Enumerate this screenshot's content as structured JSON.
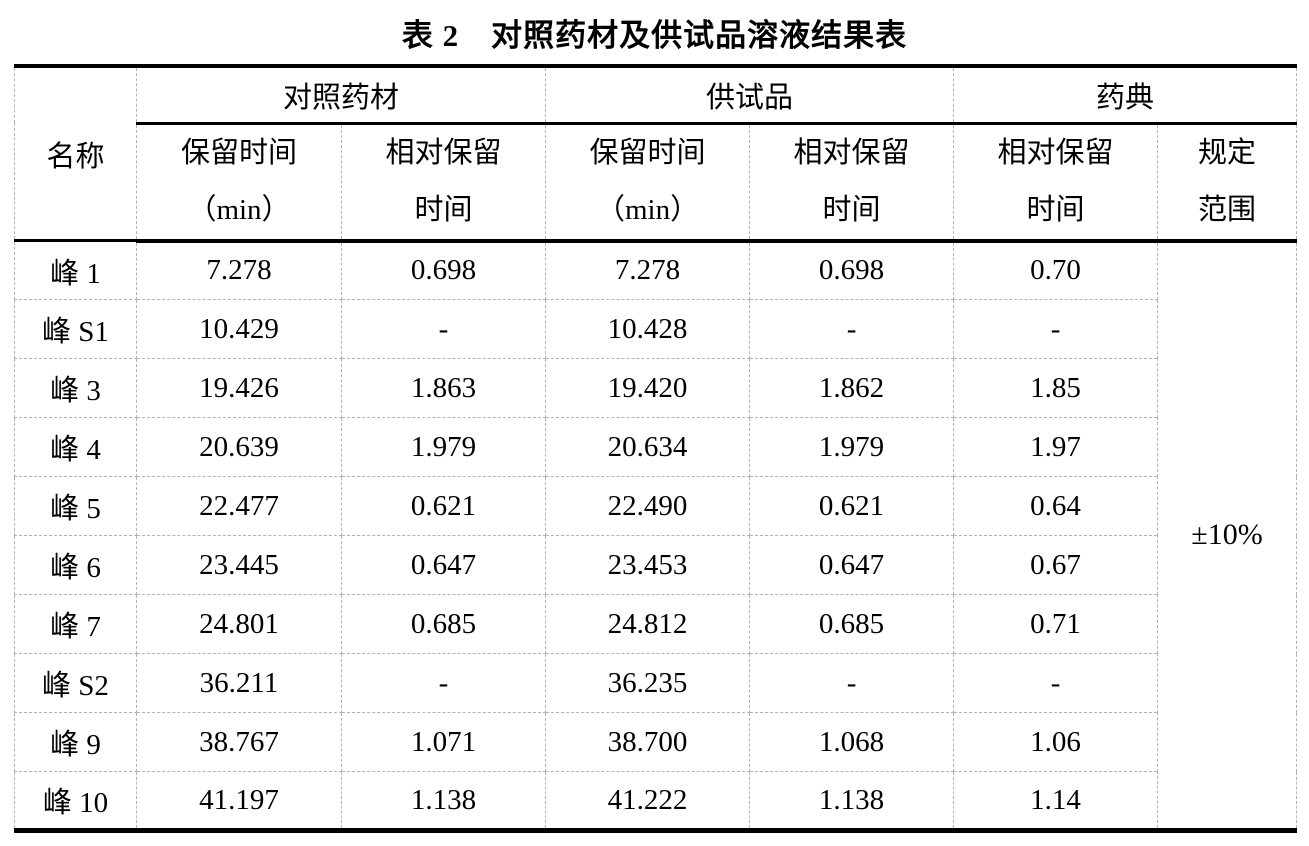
{
  "title": "表 2　对照药材及供试品溶液结果表",
  "table": {
    "header": {
      "name": "名称",
      "groups": {
        "reference": "对照药材",
        "test": "供试品",
        "pharmacopoeia": "药典"
      },
      "sub": {
        "rt_line1": "保留时间",
        "rt_line2": "（min）",
        "rrt_line1": "相对保留",
        "rrt_line2": "时间",
        "range_line1": "规定",
        "range_line2": "范围"
      }
    },
    "rows": [
      {
        "name": "峰 1",
        "ref_rt": "7.278",
        "ref_rrt": "0.698",
        "test_rt": "7.278",
        "test_rrt": "0.698",
        "pharm_rrt": "0.70"
      },
      {
        "name": "峰 S1",
        "ref_rt": "10.429",
        "ref_rrt": "-",
        "test_rt": "10.428",
        "test_rrt": "-",
        "pharm_rrt": "-"
      },
      {
        "name": "峰 3",
        "ref_rt": "19.426",
        "ref_rrt": "1.863",
        "test_rt": "19.420",
        "test_rrt": "1.862",
        "pharm_rrt": "1.85"
      },
      {
        "name": "峰 4",
        "ref_rt": "20.639",
        "ref_rrt": "1.979",
        "test_rt": "20.634",
        "test_rrt": "1.979",
        "pharm_rrt": "1.97"
      },
      {
        "name": "峰 5",
        "ref_rt": "22.477",
        "ref_rrt": "0.621",
        "test_rt": "22.490",
        "test_rrt": "0.621",
        "pharm_rrt": "0.64"
      },
      {
        "name": "峰 6",
        "ref_rt": "23.445",
        "ref_rrt": "0.647",
        "test_rt": "23.453",
        "test_rrt": "0.647",
        "pharm_rrt": "0.67"
      },
      {
        "name": "峰 7",
        "ref_rt": "24.801",
        "ref_rrt": "0.685",
        "test_rt": "24.812",
        "test_rrt": "0.685",
        "pharm_rrt": "0.71"
      },
      {
        "name": "峰 S2",
        "ref_rt": "36.211",
        "ref_rrt": "-",
        "test_rt": "36.235",
        "test_rrt": "-",
        "pharm_rrt": "-"
      },
      {
        "name": "峰 9",
        "ref_rt": "38.767",
        "ref_rrt": "1.071",
        "test_rt": "38.700",
        "test_rrt": "1.068",
        "pharm_rrt": "1.06"
      },
      {
        "name": "峰 10",
        "ref_rt": "41.197",
        "ref_rrt": "1.138",
        "test_rt": "41.222",
        "test_rrt": "1.138",
        "pharm_rrt": "1.14"
      }
    ],
    "range_value": "±10%"
  },
  "colors": {
    "text": "#000000",
    "strong_rule": "#000000",
    "gridline": "#b3b3b3",
    "background": "#ffffff"
  }
}
